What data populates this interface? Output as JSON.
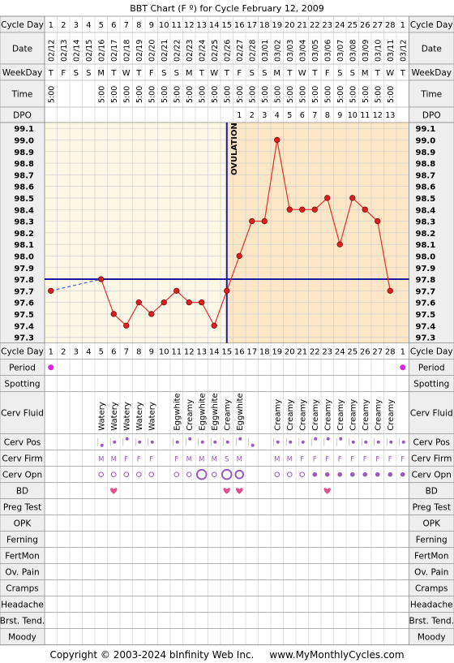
{
  "title": "BBT Chart (F º) for Cycle February 12, 2009",
  "footer": "Copyright © 2003-2024 bInfinity Web Inc.     www.MyMonthlyCycles.com",
  "colors": {
    "grid": "#cccccc",
    "pre_ovulation_bg": "#fdf8e6",
    "post_ovulation_bg": "#fbe7c6",
    "line": "#e03030",
    "point": "#d92020",
    "coverline": "#1a1aa0",
    "period": "#e020e0",
    "heart": "#e0508a",
    "dot": "#9a5abf",
    "label_bg": "#eeeeee"
  },
  "row_labels": {
    "cycle_day": "Cycle Day",
    "date": "Date",
    "weekday": "WeekDay",
    "time": "Time",
    "dpo": "DPO",
    "observations": [
      "Period",
      "Spotting",
      "Cerv Fluid",
      "Cerv Pos",
      "Cerv Firm",
      "Cerv Opn",
      "BD",
      "Preg Test",
      "OPK",
      "Ferning",
      "FertMon",
      "Ov. Pain",
      "Cramps",
      "Headache",
      "Brst. Tend.",
      "Moody"
    ]
  },
  "ovulation_label": "OVULATION",
  "chart_data": {
    "type": "line",
    "title": "BBT Chart (F º) for Cycle February 12, 2009",
    "cycle_days": [
      "1",
      "2",
      "3",
      "4",
      "5",
      "6",
      "7",
      "8",
      "9",
      "10",
      "11",
      "12",
      "13",
      "14",
      "15",
      "16",
      "17",
      "18",
      "19",
      "20",
      "21",
      "22",
      "23",
      "24",
      "25",
      "26",
      "27",
      "28",
      "1"
    ],
    "dates": [
      "02/12",
      "02/13",
      "02/14",
      "02/15",
      "02/16",
      "02/17",
      "02/18",
      "02/19",
      "02/20",
      "02/21",
      "02/22",
      "02/23",
      "02/24",
      "02/25",
      "02/26",
      "02/27",
      "02/28",
      "03/01",
      "03/02",
      "03/03",
      "03/04",
      "03/05",
      "03/06",
      "03/07",
      "03/08",
      "03/09",
      "03/10",
      "03/11",
      "03/12"
    ],
    "weekdays": [
      "T",
      "F",
      "S",
      "S",
      "M",
      "T",
      "W",
      "T",
      "F",
      "S",
      "S",
      "M",
      "T",
      "W",
      "T",
      "F",
      "S",
      "S",
      "M",
      "T",
      "W",
      "T",
      "F",
      "S",
      "S",
      "M",
      "T",
      "W",
      "T"
    ],
    "times": [
      "5:00",
      "",
      "",
      "",
      "5:00",
      "5:00",
      "5:00",
      "5:00",
      "5:00",
      "5:00",
      "5:00",
      "5:00",
      "5:00",
      "5:00",
      "5:00",
      "5:00",
      "5:00",
      "5:00",
      "5:00",
      "5:00",
      "5:00",
      "5:00",
      "5:00",
      "5:00",
      "5:00",
      "5:00",
      "5:00",
      "5:00",
      ""
    ],
    "dpo": [
      "",
      "",
      "",
      "",
      "",
      "",
      "",
      "",
      "",
      "",
      "",
      "",
      "",
      "",
      "",
      "1",
      "2",
      "3",
      "4",
      "5",
      "6",
      "7",
      "8",
      "9",
      "10",
      "11",
      "12",
      "13",
      ""
    ],
    "temperatures": [
      97.7,
      null,
      null,
      null,
      97.8,
      97.5,
      97.4,
      97.6,
      97.5,
      97.6,
      97.7,
      97.6,
      97.6,
      97.4,
      97.7,
      98.0,
      98.3,
      98.3,
      99.0,
      98.4,
      98.4,
      98.4,
      98.5,
      98.1,
      98.5,
      98.4,
      98.3,
      97.7,
      null
    ],
    "y_ticks": [
      "99.1",
      "99.0",
      "98.9",
      "98.8",
      "98.7",
      "98.6",
      "98.5",
      "98.4",
      "98.3",
      "98.2",
      "98.1",
      "98.0",
      "97.9",
      "97.8",
      "97.7",
      "97.6",
      "97.5",
      "97.4",
      "97.3"
    ],
    "ylim": [
      97.3,
      99.1
    ],
    "coverline": 97.8,
    "ovulation_cycle_day": 15
  },
  "observations": {
    "period": [
      1,
      0,
      0,
      0,
      0,
      0,
      0,
      0,
      0,
      0,
      0,
      0,
      0,
      0,
      0,
      0,
      0,
      0,
      0,
      0,
      0,
      0,
      0,
      0,
      0,
      0,
      0,
      0,
      1
    ],
    "cerv_fluid": [
      "",
      "",
      "",
      "",
      "Watery",
      "Watery",
      "Watery",
      "Watery",
      "Watery",
      "",
      "Eggwhite",
      "Creamy",
      "Eggwhite",
      "Eggwhite",
      "Creamy",
      "Eggwhite",
      "",
      "",
      "Creamy",
      "Creamy",
      "Creamy",
      "Creamy",
      "Creamy",
      "Creamy",
      "Creamy",
      "Creamy",
      "Creamy",
      "Creamy",
      ""
    ],
    "cerv_pos": [
      "",
      "",
      "",
      "",
      "l",
      "m",
      "h",
      "m",
      "m",
      "",
      "m",
      "h",
      "m",
      "m",
      "m",
      "h",
      "l",
      "",
      "m",
      "m",
      "m",
      "h",
      "h",
      "h",
      "m",
      "m",
      "m",
      "m",
      "m"
    ],
    "cerv_firm": [
      "",
      "",
      "",
      "",
      "M",
      "M",
      "F",
      "F",
      "F",
      "",
      "F",
      "M",
      "M",
      "M",
      "S",
      "M",
      "",
      "",
      "M",
      "M",
      "F",
      "F",
      "F",
      "F",
      "F",
      "F",
      "F",
      "F",
      "F"
    ],
    "cerv_opn": [
      0,
      0,
      0,
      0,
      1,
      1,
      1,
      1,
      1,
      0,
      1,
      1,
      3,
      1,
      3,
      2,
      0,
      0,
      1,
      1,
      1,
      4,
      4,
      4,
      4,
      4,
      4,
      4,
      4
    ],
    "bd": [
      0,
      0,
      0,
      0,
      0,
      1,
      0,
      0,
      0,
      0,
      0,
      0,
      0,
      0,
      1,
      1,
      0,
      0,
      0,
      0,
      0,
      0,
      1,
      0,
      0,
      0,
      0,
      0,
      0
    ]
  }
}
